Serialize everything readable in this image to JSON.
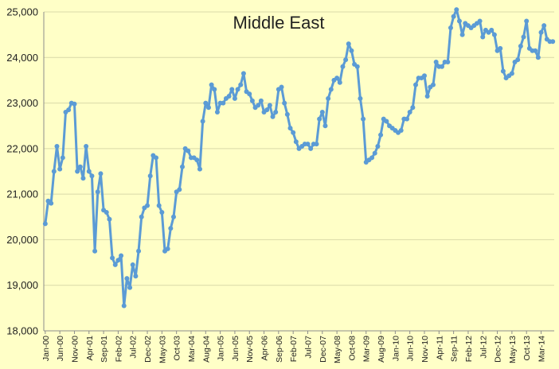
{
  "chart_data": {
    "type": "line",
    "title": "Middle East",
    "xlabel": "",
    "ylabel": "",
    "ylim": [
      18000,
      25000
    ],
    "yticks": [
      "18,000",
      "19,000",
      "20,000",
      "21,000",
      "22,000",
      "23,000",
      "24,000",
      "25,000"
    ],
    "grid": true,
    "legend": "none",
    "series_color": "#5B9BD5",
    "xtick_labels": [
      "Jan-00",
      "Jun-00",
      "Nov-00",
      "Apr-01",
      "Sep-01",
      "Feb-02",
      "Jul-02",
      "Dec-02",
      "May-03",
      "Oct-03",
      "Mar-04",
      "Aug-04",
      "Jan-05",
      "Jun-05",
      "Nov-05",
      "Apr-06",
      "Sep-06",
      "Feb-07",
      "Jul-07",
      "Dec-07",
      "May-08",
      "Oct-08",
      "Mar-09",
      "Aug-09",
      "Jan-10",
      "Jun-10",
      "Nov-10",
      "Apr-11",
      "Sep-11",
      "Feb-12",
      "Jul-12",
      "Dec-12",
      "May-13",
      "Oct-13",
      "Mar-14"
    ],
    "x_start": "Jan-00",
    "series": [
      {
        "values": [
          20350,
          20850,
          20800,
          21500,
          22050,
          21550,
          21800,
          22800,
          22850,
          23000,
          22980,
          21500,
          21600,
          21350,
          22050,
          21500,
          21400,
          19750,
          21050,
          21450,
          20650,
          20600,
          20450,
          19600,
          19450,
          19550,
          19650,
          18550,
          19150,
          18950,
          19450,
          19200,
          19750,
          20500,
          20700,
          20750,
          21400,
          21850,
          21800,
          20750,
          20600,
          19750,
          19800,
          20250,
          20500,
          21050,
          21100,
          21600,
          22000,
          21950,
          21800,
          21800,
          21750,
          21550,
          22600,
          23000,
          22900,
          23400,
          23300,
          22800,
          23000,
          23000,
          23100,
          23150,
          23300,
          23100,
          23300,
          23400,
          23650,
          23250,
          23200,
          23050,
          22900,
          22950,
          23050,
          22800,
          22850,
          22950,
          22700,
          22800,
          23300,
          23350,
          23000,
          22750,
          22450,
          22350,
          22150,
          22000,
          22050,
          22100,
          22100,
          22000,
          22100,
          22100,
          22650,
          22800,
          22500,
          23100,
          23300,
          23500,
          23550,
          23450,
          23800,
          23950,
          24300,
          24150,
          23850,
          23800,
          23100,
          22650,
          21700,
          21750,
          21800,
          21900,
          22050,
          22300,
          22650,
          22600,
          22500,
          22450,
          22400,
          22350,
          22400,
          22650,
          22650,
          22800,
          22900,
          23400,
          23550,
          23550,
          23600,
          23150,
          23350,
          23400,
          23900,
          23800,
          23800,
          23900,
          23900,
          24650,
          24900,
          25050,
          24800,
          24500,
          24750,
          24700,
          24650,
          24700,
          24750,
          24800,
          24450,
          24600,
          24550,
          24600,
          24500,
          24150,
          24200,
          23700,
          23550,
          23600,
          23650,
          23900,
          23950,
          24250,
          24450,
          24800,
          24200,
          24150,
          24150,
          24000,
          24550,
          24700,
          24400,
          24350,
          24350
        ]
      }
    ]
  }
}
